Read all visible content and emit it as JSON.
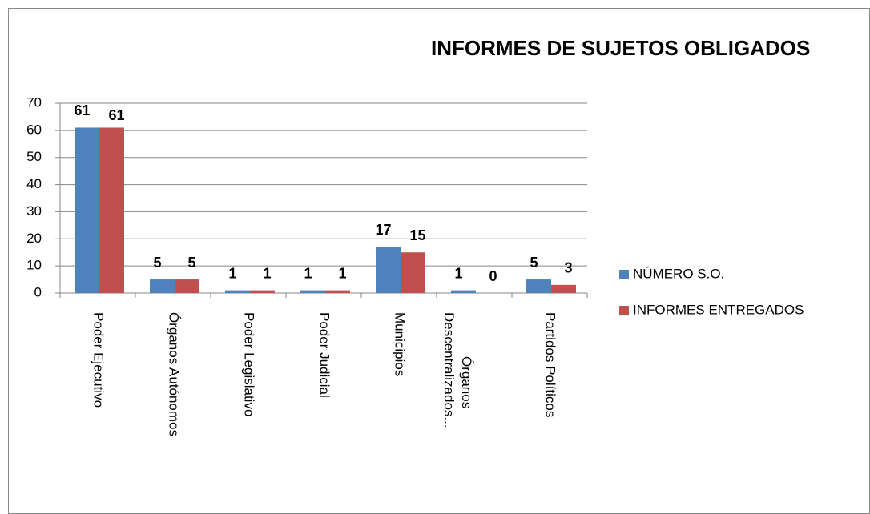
{
  "chart_data": {
    "type": "bar",
    "title": "INFORMES DE SUJETOS OBLIGADOS",
    "categories": [
      "Poder Ejecutivo",
      "Órganos Autónomos",
      "Poder Legislativo",
      "Poder Judicial",
      "Municipios",
      "Órganos Descentralizados...",
      "Partidos Políticos"
    ],
    "series": [
      {
        "name": "NÚMERO S.O.",
        "color": "#4f81bd",
        "values": [
          61,
          5,
          1,
          1,
          17,
          1,
          5
        ]
      },
      {
        "name": "INFORMES ENTREGADOS",
        "color": "#c0504d",
        "values": [
          61,
          5,
          1,
          1,
          15,
          0,
          3
        ]
      }
    ],
    "ylim": [
      0,
      70
    ],
    "yticks": [
      0,
      10,
      20,
      30,
      40,
      50,
      60,
      70
    ],
    "grid": true,
    "legend": "right"
  }
}
